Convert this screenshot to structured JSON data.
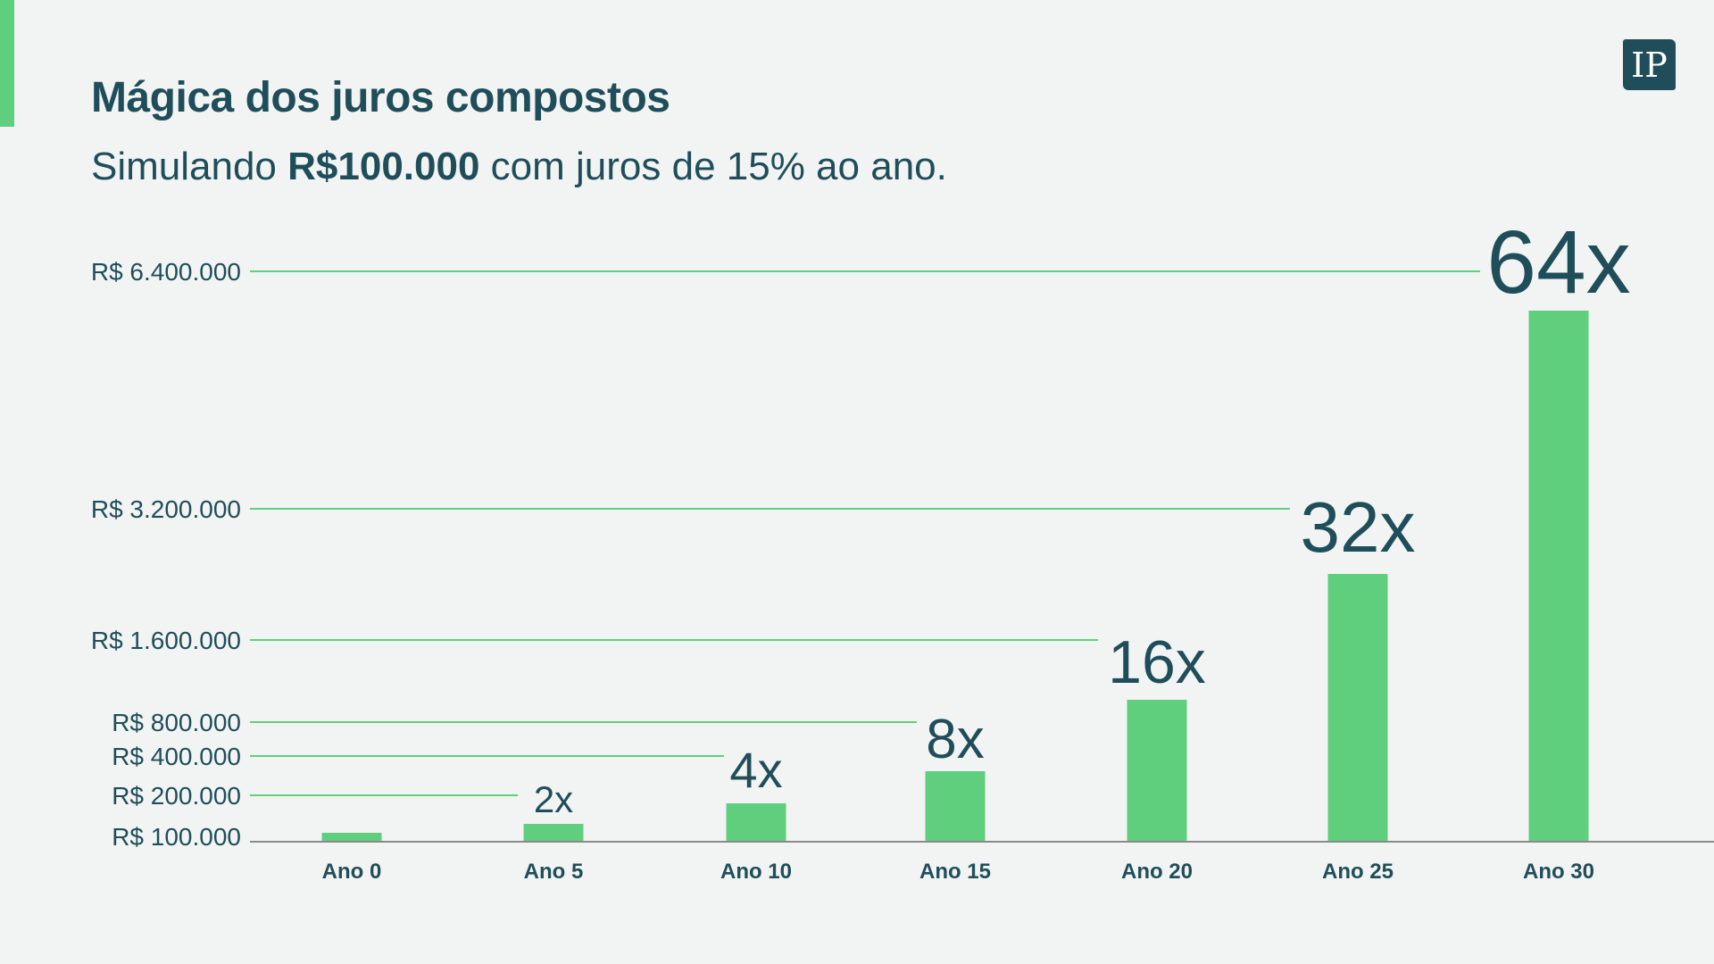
{
  "header": {
    "title": "Mágica dos juros compostos",
    "subtitle_pre": "Simulando ",
    "subtitle_bold": "R$100.000",
    "subtitle_post": " com juros de 15% ao ano.",
    "logo_text": "IP"
  },
  "colors": {
    "bar": "#5fcf7e",
    "text": "#1f4e5a",
    "axis": "#8a8a8a",
    "background": "#f2f4f3"
  },
  "chart_data": {
    "type": "bar",
    "title": "Mágica dos juros compostos",
    "subtitle": "Simulando R$100.000 com juros de 15% ao ano.",
    "categories": [
      "Ano 0",
      "Ano 5",
      "Ano 10",
      "Ano 15",
      "Ano 20",
      "Ano 25",
      "Ano 30"
    ],
    "values": [
      100000,
      201136,
      404556,
      813706,
      1636654,
      3291895,
      6621177
    ],
    "multipliers": [
      "",
      "2x",
      "4x",
      "8x",
      "16x",
      "32x",
      "64x"
    ],
    "yticks": [
      {
        "value": 100000,
        "label": "R$ 100.000"
      },
      {
        "value": 200000,
        "label": "R$ 200.000"
      },
      {
        "value": 400000,
        "label": "R$ 400.000"
      },
      {
        "value": 800000,
        "label": "R$ 800.000"
      },
      {
        "value": 1600000,
        "label": "R$ 1.600.000"
      },
      {
        "value": 3200000,
        "label": "R$ 3.200.000"
      },
      {
        "value": 6400000,
        "label": "R$ 6.400.000"
      }
    ],
    "xlabel": "",
    "ylabel": "",
    "grid": true,
    "legend": "none"
  }
}
